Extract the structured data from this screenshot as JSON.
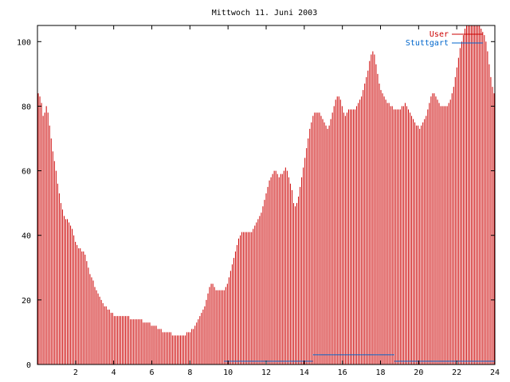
{
  "chart_data": {
    "type": "bar",
    "title": "Mittwoch 11. Juni 2003",
    "xlabel": "",
    "ylabel": "",
    "xlim": [
      0,
      24
    ],
    "ylim": [
      0,
      105
    ],
    "x_ticks": [
      "2",
      "4",
      "6",
      "8",
      "10",
      "12",
      "14",
      "16",
      "18",
      "20",
      "22",
      "24"
    ],
    "y_ticks": [
      "0",
      "20",
      "40",
      "60",
      "80",
      "100"
    ],
    "grid": false,
    "legend_position": "top-right",
    "colors": {
      "User": "#cc0000",
      "Stuttgart": "#0066cc",
      "axis": "#000000"
    },
    "series": [
      {
        "name": "User",
        "bar_interval_hours": 0.08333,
        "values": [
          84,
          83,
          81,
          77,
          78,
          80,
          78,
          74,
          70,
          66,
          63,
          60,
          56,
          53,
          50,
          48,
          46,
          45,
          45,
          44,
          43,
          42,
          40,
          38,
          37,
          36,
          36,
          35,
          35,
          34,
          32,
          30,
          28,
          27,
          26,
          24,
          23,
          22,
          21,
          20,
          19,
          18,
          18,
          17,
          17,
          16,
          16,
          15,
          15,
          15,
          15,
          15,
          15,
          15,
          15,
          15,
          15,
          14,
          14,
          14,
          14,
          14,
          14,
          14,
          14,
          13,
          13,
          13,
          13,
          13,
          12,
          12,
          12,
          12,
          11,
          11,
          11,
          10,
          10,
          10,
          10,
          10,
          10,
          9,
          9,
          9,
          9,
          9,
          9,
          9,
          9,
          9,
          10,
          10,
          10,
          11,
          11,
          12,
          13,
          14,
          15,
          16,
          17,
          18,
          20,
          22,
          24,
          25,
          25,
          24,
          23,
          23,
          23,
          23,
          23,
          23,
          24,
          25,
          27,
          29,
          31,
          33,
          35,
          37,
          39,
          40,
          41,
          41,
          41,
          41,
          41,
          41,
          41,
          42,
          43,
          44,
          45,
          46,
          47,
          49,
          51,
          53,
          55,
          57,
          58,
          59,
          60,
          60,
          59,
          58,
          59,
          59,
          60,
          61,
          60,
          58,
          56,
          54,
          50,
          49,
          50,
          52,
          55,
          58,
          61,
          64,
          67,
          70,
          73,
          75,
          77,
          78,
          78,
          78,
          78,
          77,
          76,
          75,
          74,
          73,
          74,
          76,
          78,
          80,
          82,
          83,
          83,
          82,
          80,
          78,
          77,
          78,
          79,
          79,
          79,
          79,
          79,
          80,
          81,
          82,
          83,
          85,
          87,
          89,
          91,
          94,
          96,
          97,
          96,
          93,
          90,
          87,
          85,
          84,
          83,
          82,
          81,
          81,
          80,
          80,
          79,
          79,
          79,
          79,
          79,
          80,
          80,
          81,
          80,
          79,
          78,
          77,
          76,
          75,
          74,
          74,
          73,
          74,
          75,
          76,
          77,
          79,
          81,
          83,
          84,
          84,
          83,
          82,
          81,
          80,
          80,
          80,
          80,
          80,
          81,
          82,
          84,
          86,
          89,
          92,
          95,
          98,
          100,
          102,
          104,
          105,
          105,
          105,
          105,
          105,
          105,
          105,
          105,
          105,
          104,
          103,
          102,
          100,
          97,
          93,
          89,
          86,
          84
        ]
      },
      {
        "name": "Stuttgart",
        "values": [
          0,
          0,
          0,
          0,
          0,
          0,
          0,
          0,
          0,
          0,
          0,
          0,
          0,
          0,
          0,
          0,
          0,
          0,
          0,
          0,
          0,
          0,
          0,
          0,
          0,
          0,
          0,
          0,
          0,
          0,
          0,
          0,
          0,
          0,
          0,
          0,
          0,
          0,
          0,
          0,
          0,
          0,
          0,
          0,
          0,
          0,
          0,
          0,
          0,
          0,
          0,
          0,
          0,
          0,
          0,
          0,
          0,
          0,
          0,
          0,
          0,
          0,
          0,
          0,
          0,
          0,
          0,
          0,
          0,
          0,
          0,
          0,
          0,
          0,
          0,
          0,
          0,
          0,
          0,
          0,
          0,
          0,
          0,
          0,
          0,
          0,
          0,
          0,
          0,
          0,
          0,
          0,
          0,
          0,
          0,
          0,
          0,
          0,
          0,
          0,
          0,
          0,
          0,
          0,
          0,
          0,
          0,
          0,
          0,
          0,
          0,
          0,
          0,
          0,
          0,
          0,
          0,
          0,
          0,
          0,
          0,
          0,
          0,
          0,
          0,
          0,
          0,
          0,
          1,
          1,
          1,
          1,
          1,
          1,
          1,
          1,
          1,
          1,
          1,
          1,
          1,
          1,
          1,
          1,
          1,
          1,
          1,
          1,
          1,
          1,
          1,
          1,
          1,
          1,
          1,
          1,
          1,
          1,
          1,
          1,
          1,
          1,
          1,
          1,
          1,
          1,
          1,
          1,
          1,
          1,
          1,
          1,
          1,
          1,
          1,
          1,
          1,
          1,
          1,
          1,
          1,
          1,
          1,
          1,
          1,
          1,
          1,
          1,
          1,
          3,
          3,
          3,
          3,
          3,
          3,
          3,
          3,
          3,
          3,
          3,
          3,
          3,
          3,
          3,
          3,
          3,
          3,
          3,
          3,
          3,
          3,
          3,
          3,
          3,
          3,
          3,
          3,
          3,
          3,
          3,
          3,
          3,
          3,
          3,
          3,
          3,
          3,
          3,
          3,
          3,
          3,
          3,
          3,
          3,
          3,
          3,
          3,
          3,
          3,
          3,
          3,
          3,
          3,
          3,
          3,
          1,
          1,
          1,
          1,
          1,
          1,
          1,
          1,
          1,
          1,
          1,
          1,
          1,
          1,
          1,
          1,
          1,
          1,
          1,
          1,
          1,
          1,
          1,
          1,
          1,
          1,
          1,
          1,
          1,
          1,
          1,
          1,
          1,
          1,
          1,
          1,
          1,
          1,
          1,
          1,
          1,
          1,
          1,
          1,
          1,
          1,
          1,
          1,
          1,
          1,
          1,
          1,
          1,
          1,
          1,
          1,
          1,
          1,
          1,
          1,
          1,
          1,
          1,
          1,
          1,
          1,
          1,
          1,
          1
        ]
      }
    ]
  }
}
